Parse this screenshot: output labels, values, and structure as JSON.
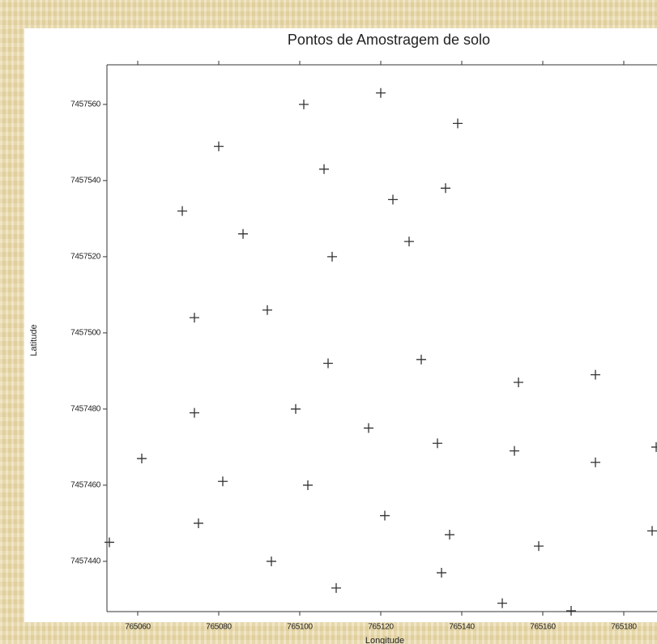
{
  "chart_data": {
    "type": "scatter",
    "title": "Pontos de Amostragem de solo",
    "xlabel": "Longitude",
    "ylabel": "Latitude",
    "x": [
      765120,
      765101,
      765139,
      765080,
      765106,
      765136,
      765123,
      765071,
      765086,
      765127,
      765108,
      765092,
      765074,
      765130,
      765107,
      765154,
      765173,
      765099,
      765074,
      765117,
      765134,
      765153,
      765061,
      765173,
      765188,
      765081,
      765102,
      765121,
      765075,
      765137,
      765187,
      765159,
      765053,
      765093,
      765135,
      765109,
      765150,
      765167
    ],
    "y": [
      7457563,
      7457560,
      7457555,
      7457549,
      7457543,
      7457538,
      7457535,
      7457532,
      7457526,
      7457524,
      7457520,
      7457506,
      7457504,
      7457493,
      7457492,
      7457487,
      7457489,
      7457480,
      7457479,
      7457475,
      7457471,
      7457469,
      7457467,
      7457466,
      7457470,
      7457461,
      7457460,
      7457452,
      7457450,
      7457447,
      7457448,
      7457444,
      7457445,
      7457440,
      7457437,
      7457433,
      7457429,
      7457427
    ],
    "color": "#333333",
    "xlim": [
      765052.4,
      765188
    ],
    "ylim": [
      7457426.8,
      7457570.4
    ],
    "xticks": [
      765060,
      765080,
      765100,
      765120,
      765140,
      765160,
      765180
    ],
    "yticks": [
      7457440,
      7457460,
      7457480,
      7457500,
      7457520,
      7457540,
      7457560
    ]
  }
}
